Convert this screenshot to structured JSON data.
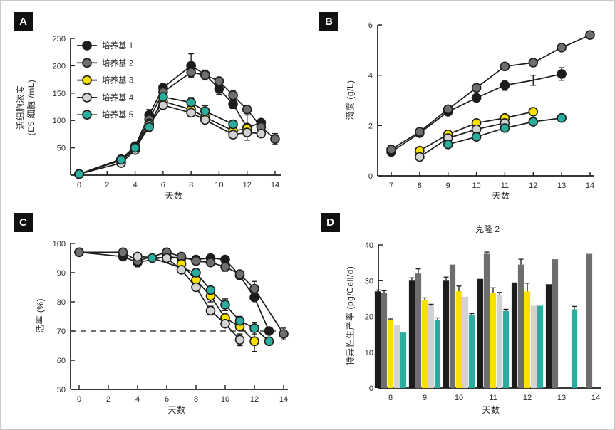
{
  "figure": {
    "background": "#ffffff",
    "border_color": "#c9c9c9",
    "ink_color": "#1d1d1b",
    "panels": {
      "A": {
        "label": "A",
        "chart_data": {
          "type": "line",
          "xlabel": "天数",
          "ylabel_line1": "活细胞浓度",
          "ylabel_line2": "(E5 细胞 /mL)",
          "xlim": [
            0,
            14
          ],
          "ylim": [
            0,
            250
          ],
          "x_ticks": [
            0,
            2,
            4,
            6,
            8,
            10,
            12,
            14
          ],
          "y_ticks": [
            50,
            100,
            150,
            200,
            250
          ],
          "grid": false,
          "legend": true,
          "legend_position": "top-left",
          "series": [
            {
              "name": "培养基 1",
              "color": "#1c1c1c",
              "points": [
                [
                  0,
                  2
                ],
                [
                  3,
                  29
                ],
                [
                  4,
                  53
                ],
                [
                  5,
                  110,
                  10
                ],
                [
                  6,
                  160
                ],
                [
                  8,
                  200,
                  22
                ],
                [
                  9,
                  184
                ],
                [
                  10,
                  158,
                  10
                ],
                [
                  11,
                  130,
                  8
                ],
                [
                  12,
                  87,
                  23
                ],
                [
                  13,
                  96
                ]
              ]
            },
            {
              "name": "培养基 2",
              "color": "#6e6e6e",
              "points": [
                [
                  0,
                  2
                ],
                [
                  3,
                  29
                ],
                [
                  4,
                  51
                ],
                [
                  5,
                  102
                ],
                [
                  6,
                  152
                ],
                [
                  8,
                  188,
                  8
                ],
                [
                  9,
                  183,
                  9
                ],
                [
                  10,
                  172
                ],
                [
                  11,
                  146,
                  9
                ],
                [
                  12,
                  120
                ],
                [
                  13,
                  88
                ],
                [
                  14,
                  66,
                  10
                ]
              ]
            },
            {
              "name": "培养基 3",
              "color": "#F8E100",
              "points": [
                [
                  0,
                  2
                ],
                [
                  3,
                  27
                ],
                [
                  4,
                  48
                ],
                [
                  5,
                  95
                ],
                [
                  6,
                  135
                ],
                [
                  8,
                  120,
                  7
                ],
                [
                  9,
                  106,
                  6
                ],
                [
                  11,
                  81
                ],
                [
                  12,
                  85
                ]
              ]
            },
            {
              "name": "培养基 4",
              "color": "#D2D2D2",
              "points": [
                [
                  0,
                  2
                ],
                [
                  3,
                  22
                ],
                [
                  4,
                  46
                ],
                [
                  5,
                  92
                ],
                [
                  6,
                  128
                ],
                [
                  8,
                  114
                ],
                [
                  9,
                  101
                ],
                [
                  11,
                  74
                ],
                [
                  12,
                  78
                ],
                [
                  13,
                  76
                ]
              ]
            },
            {
              "name": "培养基 5",
              "color": "#2BAC9F",
              "points": [
                [
                  0,
                  2
                ],
                [
                  3,
                  28
                ],
                [
                  4,
                  50
                ],
                [
                  5,
                  88,
                  9
                ],
                [
                  6,
                  143
                ],
                [
                  8,
                  133,
                  9
                ],
                [
                  9,
                  117,
                  10
                ],
                [
                  11,
                  93
                ]
              ]
            }
          ]
        }
      },
      "B": {
        "label": "B",
        "chart_data": {
          "type": "line",
          "xlabel": "天数",
          "ylabel": "滴度 (g/L)",
          "xlim": [
            7,
            14
          ],
          "ylim": [
            0,
            6
          ],
          "x_ticks": [
            7,
            8,
            9,
            10,
            11,
            12,
            13,
            14
          ],
          "y_ticks": [
            0,
            2,
            4,
            6
          ],
          "grid": false,
          "legend": false,
          "series": [
            {
              "name": "培养基 1",
              "color": "#1c1c1c",
              "no_marker_x": [
                12
              ],
              "points": [
                [
                  7,
                  0.95
                ],
                [
                  8,
                  1.7
                ],
                [
                  9,
                  2.55
                ],
                [
                  10,
                  3.1
                ],
                [
                  11,
                  3.6,
                  0.2
                ],
                [
                  12,
                  3.8,
                  0.2
                ],
                [
                  13,
                  4.05,
                  0.25
                ]
              ]
            },
            {
              "name": "培养基 2",
              "color": "#6e6e6e",
              "points": [
                [
                  7,
                  1.05
                ],
                [
                  8,
                  1.75
                ],
                [
                  9,
                  2.65
                ],
                [
                  10,
                  3.5
                ],
                [
                  11,
                  4.35
                ],
                [
                  12,
                  4.5
                ],
                [
                  13,
                  5.1
                ],
                [
                  14,
                  5.6
                ]
              ]
            },
            {
              "name": "培养基 3",
              "color": "#F8E100",
              "points": [
                [
                  8,
                  1.0
                ],
                [
                  9,
                  1.65
                ],
                [
                  10,
                  2.1
                ],
                [
                  11,
                  2.3
                ],
                [
                  12,
                  2.55
                ]
              ]
            },
            {
              "name": "培养基 4",
              "color": "#D2D2D2",
              "points": [
                [
                  8,
                  0.75
                ],
                [
                  9,
                  1.5
                ],
                [
                  10,
                  1.85
                ],
                [
                  11,
                  2.1
                ]
              ]
            },
            {
              "name": "培养基 5",
              "color": "#2BAC9F",
              "points": [
                [
                  9,
                  1.25
                ],
                [
                  10,
                  1.55
                ],
                [
                  11,
                  1.9
                ],
                [
                  12,
                  2.15
                ],
                [
                  13,
                  2.3
                ]
              ]
            }
          ]
        }
      },
      "C": {
        "label": "C",
        "chart_data": {
          "type": "line",
          "xlabel": "天数",
          "ylabel": "活率 (%)",
          "xlim": [
            0,
            14
          ],
          "ylim": [
            50,
            100
          ],
          "x_ticks": [
            0,
            2,
            4,
            6,
            8,
            10,
            12,
            14
          ],
          "y_ticks": [
            50,
            60,
            70,
            80,
            90,
            100
          ],
          "dashed_y": 70,
          "grid": false,
          "legend": false,
          "series": [
            {
              "name": "培养基 1",
              "color": "#1c1c1c",
              "points": [
                [
                  0,
                  97
                ],
                [
                  3,
                  95.5
                ],
                [
                  4,
                  93.5,
                  1.5
                ],
                [
                  6,
                  95.5
                ],
                [
                  7,
                  95
                ],
                [
                  8,
                  94.5
                ],
                [
                  9,
                  95
                ],
                [
                  10,
                  94.5
                ],
                [
                  11,
                  89,
                  1
                ],
                [
                  12,
                  81.5
                ],
                [
                  13,
                  70,
                  1
                ]
              ]
            },
            {
              "name": "培养基 2",
              "color": "#6e6e6e",
              "points": [
                [
                  0,
                  97
                ],
                [
                  3,
                  97
                ],
                [
                  4,
                  94
                ],
                [
                  6,
                  97
                ],
                [
                  7,
                  95.5
                ],
                [
                  8,
                  94
                ],
                [
                  9,
                  93.5
                ],
                [
                  10,
                  92,
                  1.5
                ],
                [
                  11,
                  89.5
                ],
                [
                  12,
                  84.5,
                  2.5
                ],
                [
                  14,
                  69,
                  2
                ]
              ]
            },
            {
              "name": "培养基 3",
              "color": "#F8E100",
              "points": [
                [
                  7,
                  93
                ],
                [
                  8,
                  87.5
                ],
                [
                  9,
                  82,
                  2
                ],
                [
                  10,
                  74.5
                ],
                [
                  11,
                  71.5
                ],
                [
                  12,
                  66.5,
                  3.5
                ]
              ]
            },
            {
              "name": "培养基 4",
              "color": "#D2D2D2",
              "points": [
                [
                  4,
                  95.5
                ],
                [
                  6,
                  95
                ],
                [
                  7,
                  91
                ],
                [
                  8,
                  85
                ],
                [
                  9,
                  77,
                  1.5
                ],
                [
                  10,
                  72.5
                ],
                [
                  11,
                  67,
                  2
                ]
              ]
            },
            {
              "name": "培养基 5",
              "color": "#2BAC9F",
              "points": [
                [
                  5,
                  95
                ],
                [
                  8,
                  90
                ],
                [
                  9,
                  84
                ],
                [
                  10,
                  79,
                  2
                ],
                [
                  11,
                  73.5,
                  1.5
                ],
                [
                  12,
                  71,
                  2
                ],
                [
                  13,
                  66.5
                ]
              ]
            }
          ]
        }
      },
      "D": {
        "label": "D",
        "chart_data": {
          "type": "bar",
          "title": "克隆 2",
          "xlabel": "天数",
          "ylabel": "特异性生产率 (pg/Cell/d)",
          "ylim": [
            0,
            40
          ],
          "y_ticks": [
            0,
            10,
            20,
            30,
            40
          ],
          "categories": [
            "8",
            "9",
            "10",
            "11",
            "12",
            "13",
            "14"
          ],
          "grid": false,
          "legend": false,
          "series": [
            {
              "name": "培养基 1",
              "color": "#1c1c1c",
              "values": [
                27,
                30,
                30,
                30.5,
                29.5,
                29,
                null
              ],
              "errors": [
                0.4,
                0.8,
                1.0,
                0,
                0,
                0,
                null
              ]
            },
            {
              "name": "培养基 2",
              "color": "#6e6e6e",
              "values": [
                26.5,
                32,
                34.5,
                37.5,
                34.5,
                36,
                37.5
              ],
              "errors": [
                0.7,
                1.3,
                0,
                0.5,
                1.5,
                0,
                0
              ]
            },
            {
              "name": "培养基 3",
              "color": "#F8E100",
              "values": [
                19,
                24.5,
                27,
                26.5,
                27,
                null,
                null
              ],
              "errors": [
                0.3,
                0.7,
                1.5,
                1.5,
                2.3,
                null,
                null
              ]
            },
            {
              "name": "培养基 4",
              "color": "#D2D2D2",
              "values": [
                17.5,
                23,
                25.5,
                26,
                23,
                null,
                null
              ],
              "errors": [
                0,
                0.4,
                0,
                0.7,
                0,
                null,
                null
              ]
            },
            {
              "name": "培养基 5",
              "color": "#2BAC9F",
              "values": [
                15.5,
                19,
                20.5,
                21.5,
                23,
                22,
                null
              ],
              "errors": [
                0,
                0.6,
                0.3,
                0.5,
                0,
                0.8,
                null
              ]
            }
          ]
        }
      }
    }
  }
}
